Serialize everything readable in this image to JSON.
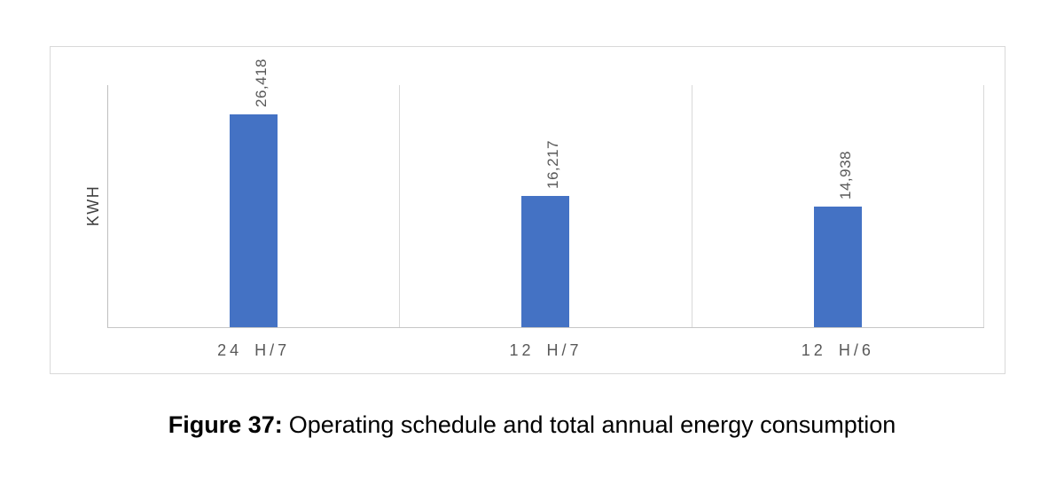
{
  "chart_data": {
    "type": "bar",
    "categories": [
      "24 H/7",
      "12 H/7",
      "12 H/6"
    ],
    "values": [
      26418,
      16217,
      14938
    ],
    "value_labels": [
      "26,418",
      "16,217",
      "14,938"
    ],
    "title": "",
    "xlabel": "",
    "ylabel": "KWH",
    "ylim": [
      0,
      30000
    ],
    "grid": "vertical-category-separators",
    "legend_position": "none",
    "bar_color": "#4472c4",
    "label_color": "#595959",
    "axis_color": "#bfbfbf",
    "gridline_color": "#d9d9d9"
  },
  "caption": {
    "label": "Figure 37:",
    "text": "Operating schedule and total annual energy consumption"
  }
}
